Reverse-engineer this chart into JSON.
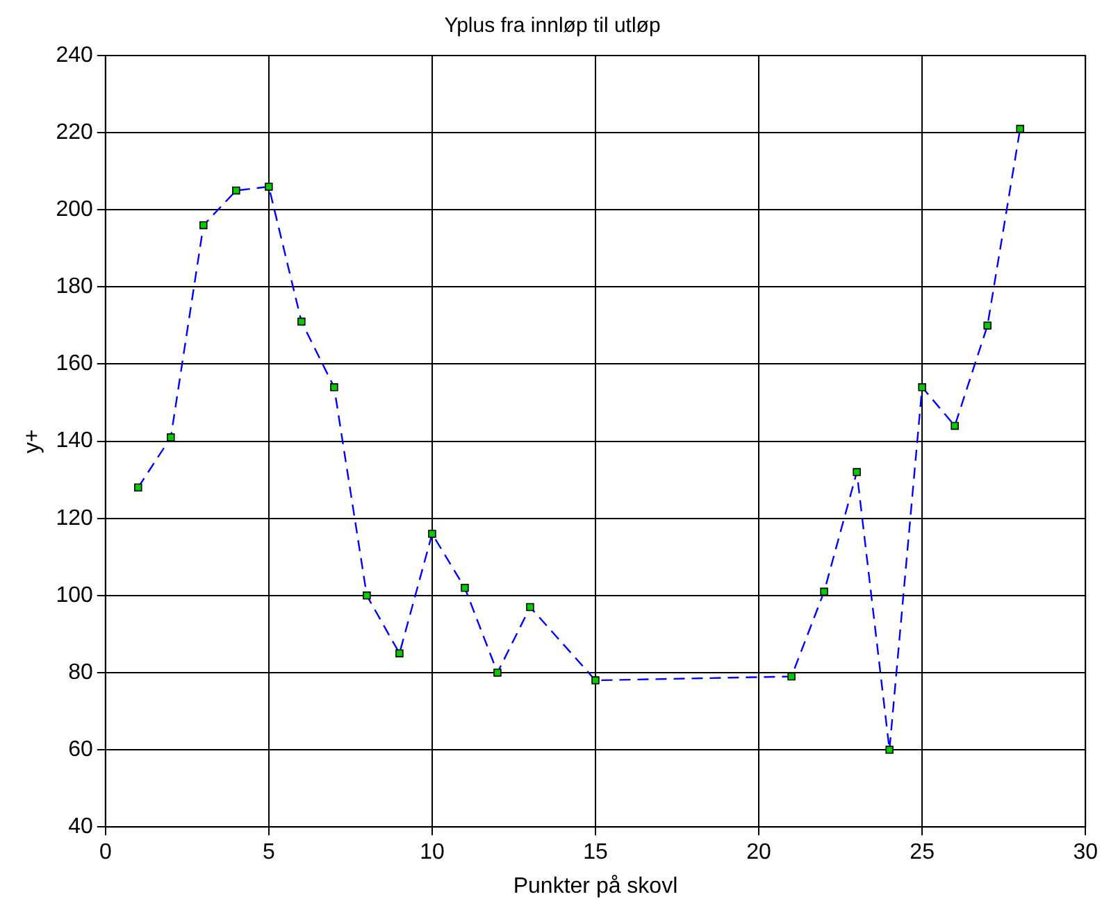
{
  "chart_data": {
    "type": "line",
    "title": "Yplus fra innløp til utløp",
    "xlabel": "Punkter på skovl",
    "ylabel": "y+",
    "x": [
      1,
      2,
      3,
      4,
      5,
      6,
      7,
      8,
      9,
      10,
      11,
      12,
      13,
      15,
      21,
      22,
      23,
      24,
      25,
      26,
      27,
      28
    ],
    "series": [
      {
        "color": "#0000ff",
        "colors": [
          "#00cc00",
          "#00cc00",
          "#00cc00",
          "#00cc00",
          "#00cc00",
          "#00cc00",
          "#00cc00",
          "#00cc00",
          "#00cc00",
          "#00cc00",
          "#00cc00",
          "#00cc00",
          "#00cc00",
          "#00cc00",
          "#00cc00",
          "#00cc00",
          "#00cc00",
          "#00cc00",
          "#00cc00",
          "#00cc00",
          "#00cc00",
          "#00cc00"
        ],
        "values": [
          128,
          141,
          196,
          205,
          206,
          171,
          154,
          100,
          85,
          116,
          102,
          80,
          97,
          78,
          79,
          101,
          132,
          60,
          154,
          144,
          170,
          221
        ]
      }
    ],
    "xlim": [
      0,
      30
    ],
    "xticks": [
      0,
      5,
      10,
      15,
      20,
      25,
      30
    ],
    "ylim": [
      40,
      240
    ],
    "yticks": [
      40,
      60,
      80,
      100,
      120,
      140,
      160,
      180,
      200,
      220,
      240
    ],
    "grid": true,
    "marker": "square",
    "line_style": "dashed",
    "legend": false
  }
}
